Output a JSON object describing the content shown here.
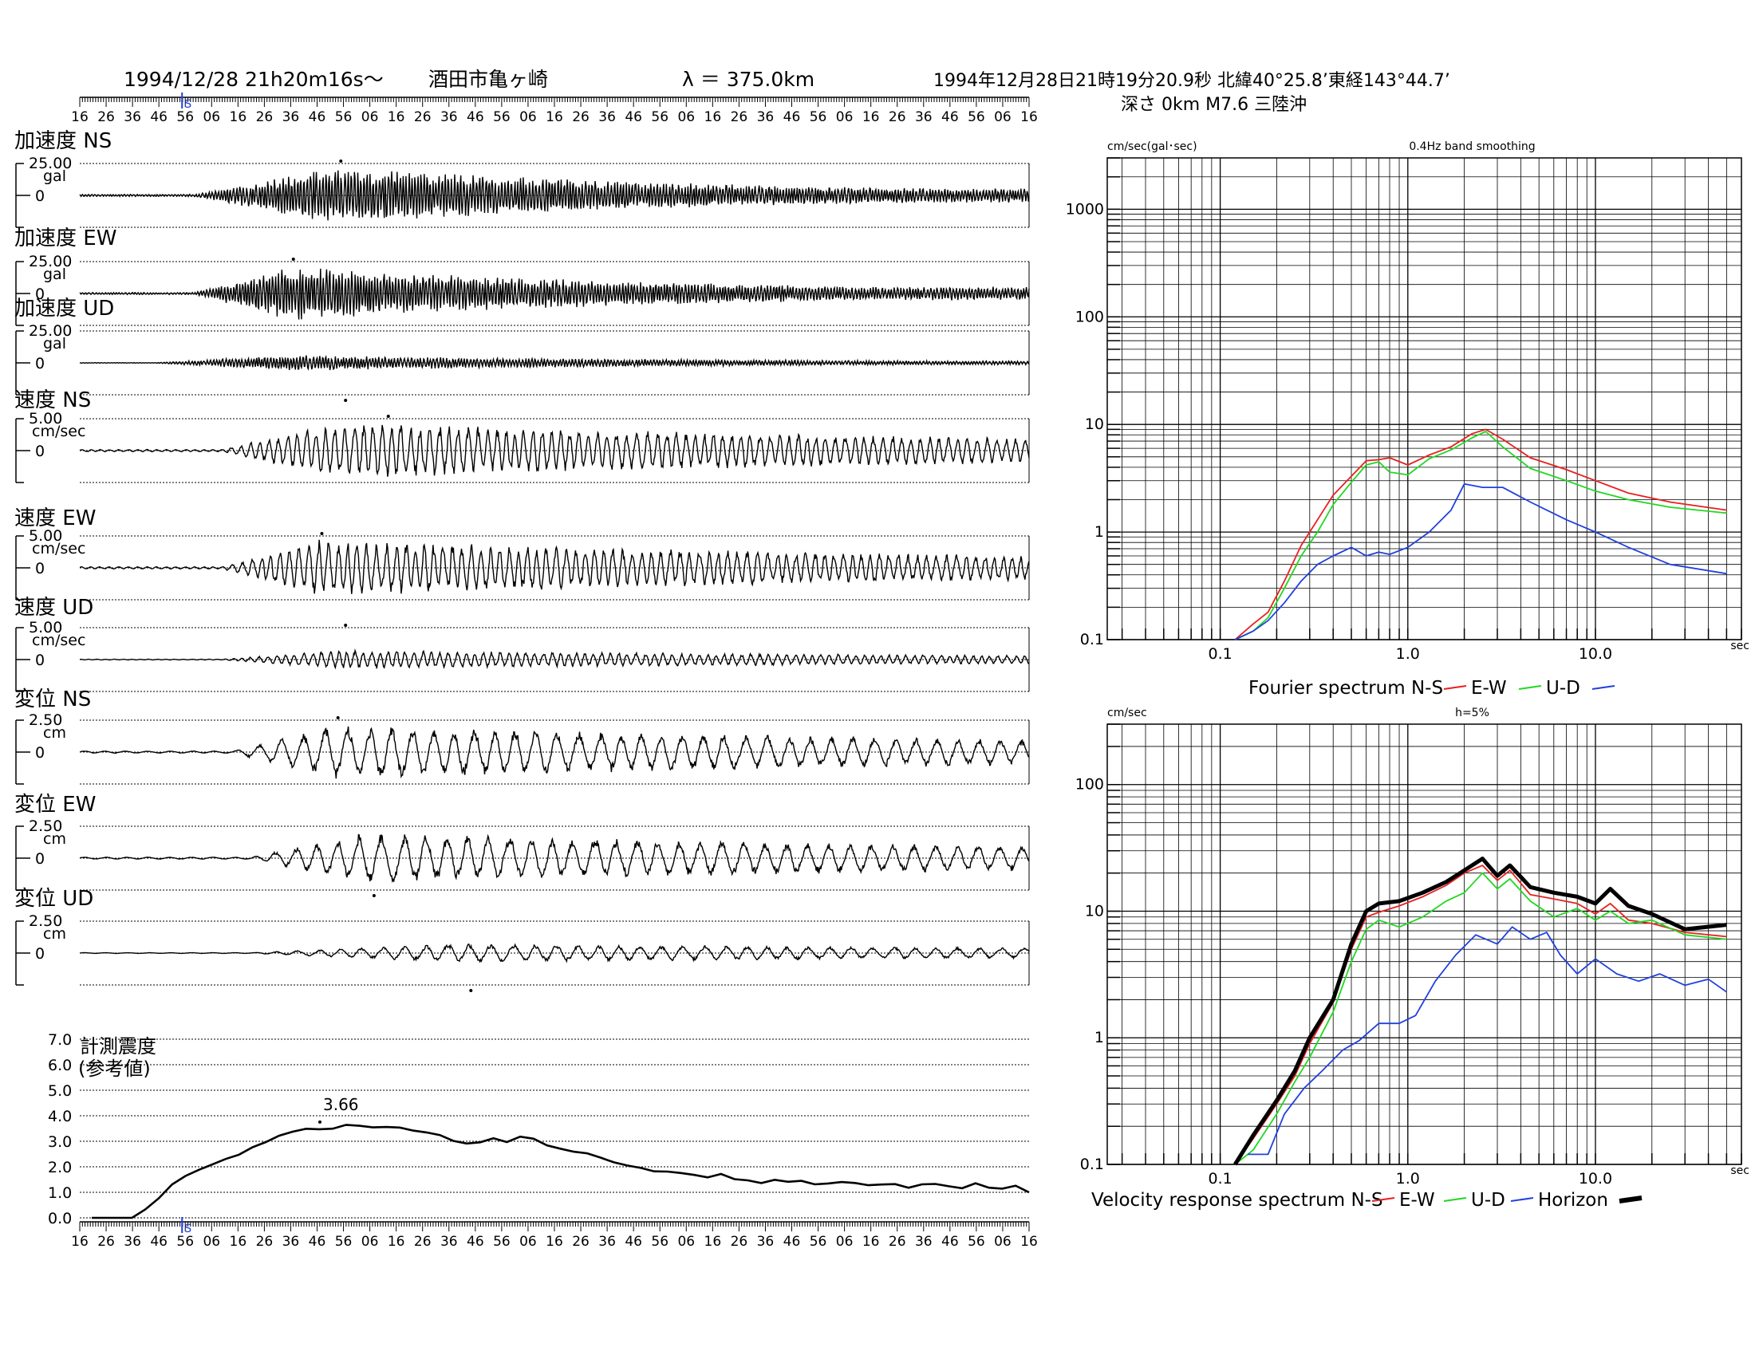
{
  "header": {
    "event_time": "1994/12/28  21h20m16s〜",
    "station": "酒田市亀ヶ崎",
    "epicentral_distance": "λ ＝ 375.0km",
    "quake_line1": "1994年12月28日21時19分20.9秒 北緯40°25.8’東経143°44.7’",
    "quake_line2": "深さ  0km M7.6 三陸沖",
    "time_ticks": [
      "16",
      "26",
      "36",
      "46",
      "56",
      "06",
      "16",
      "26",
      "36",
      "46",
      "56",
      "06",
      "16",
      "26",
      "36",
      "46",
      "56",
      "06",
      "16",
      "26",
      "36",
      "46",
      "56",
      "06",
      "16",
      "26",
      "36",
      "46",
      "56",
      "06",
      "16",
      "26",
      "36",
      "46",
      "56",
      "06",
      "16"
    ],
    "s_marker": "S"
  },
  "waveforms": [
    {
      "title": "加速度 NS",
      "scale": "25.00",
      "unit": "gal",
      "zero": "0",
      "amp": 0.9,
      "onset": 0.12,
      "peak": 0.27,
      "freq": 1.4,
      "decay": 0.45,
      "marker": "top",
      "marker_pos": 0.275
    },
    {
      "title": "加速度 EW",
      "scale": "25.00",
      "unit": "gal",
      "zero": "0",
      "amp": 0.85,
      "onset": 0.12,
      "peak": 0.22,
      "freq": 1.4,
      "decay": 0.45,
      "marker": "top",
      "marker_pos": 0.225
    },
    {
      "title": "加速度 UD",
      "scale": "25.00",
      "unit": "gal",
      "zero": "0",
      "amp": 0.25,
      "onset": 0.08,
      "peak": 0.22,
      "freq": 1.4,
      "decay": 0.5,
      "marker": "bottom",
      "marker_pos": 0.28
    },
    {
      "title": "速度 NS",
      "scale": "5.00",
      "unit": "cm/sec",
      "zero": "0",
      "amp": 0.9,
      "onset": 0.15,
      "peak": 0.27,
      "freq": 0.45,
      "decay": 0.9,
      "marker": "top",
      "marker_pos": 0.325
    },
    {
      "title": "速度 EW",
      "scale": "5.00",
      "unit": "cm/sec",
      "zero": "0",
      "amp": 0.9,
      "onset": 0.15,
      "peak": 0.25,
      "freq": 0.45,
      "decay": 0.9,
      "marker": "top",
      "marker_pos": 0.255
    },
    {
      "title": "速度 UD",
      "scale": "5.00",
      "unit": "cm/sec",
      "zero": "0",
      "amp": 0.3,
      "onset": 0.15,
      "peak": 0.28,
      "freq": 0.5,
      "decay": 0.9,
      "marker": "top",
      "marker_pos": 0.28
    },
    {
      "title": "変位 NS",
      "scale": "2.50",
      "unit": "cm",
      "zero": "0",
      "amp": 0.85,
      "onset": 0.16,
      "peak": 0.27,
      "freq": 0.2,
      "decay": 1.0,
      "marker": "top",
      "marker_pos": 0.272
    },
    {
      "title": "変位 EW",
      "scale": "2.50",
      "unit": "cm",
      "zero": "0",
      "amp": 0.8,
      "onset": 0.18,
      "peak": 0.3,
      "freq": 0.2,
      "decay": 1.0,
      "marker": "bottom",
      "marker_pos": 0.31
    },
    {
      "title": "変位 UD",
      "scale": "2.50",
      "unit": "cm",
      "zero": "0",
      "amp": 0.3,
      "onset": 0.18,
      "peak": 0.4,
      "freq": 0.2,
      "decay": 1.0,
      "marker": "bottom",
      "marker_pos": 0.412
    }
  ],
  "intensity": {
    "label_line1": "計測震度",
    "label_line2": "(参考値)",
    "peak_label": "3.66",
    "yticks": [
      "0.0",
      "1.0",
      "2.0",
      "3.0",
      "4.0",
      "5.0",
      "6.0",
      "7.0"
    ],
    "s_marker": "S"
  },
  "chart_data": [
    {
      "type": "line",
      "title": "Fourier spectrum",
      "subtitle": "0.4Hz band smoothing",
      "ylabel": "cm/sec(gal･sec)",
      "xlabel": "sec",
      "xscale": "log",
      "yscale": "log",
      "xlim": [
        0.025,
        60
      ],
      "ylim": [
        0.1,
        3000
      ],
      "xticks": [
        "0.1",
        "1.0",
        "10.0"
      ],
      "yticks": [
        "0.1",
        "1",
        "10",
        "100",
        "1000"
      ],
      "legend": [
        "N-S",
        "E-W",
        "U-D"
      ],
      "series": [
        {
          "name": "N-S",
          "color": "#e82020",
          "x": [
            0.12,
            0.15,
            0.18,
            0.22,
            0.27,
            0.33,
            0.4,
            0.5,
            0.6,
            0.7,
            0.8,
            1.0,
            1.3,
            1.7,
            2.2,
            2.6,
            3.2,
            4.5,
            7,
            10,
            15,
            25,
            50
          ],
          "y": [
            0.1,
            0.14,
            0.18,
            0.35,
            0.75,
            1.3,
            2.2,
            3.3,
            4.6,
            4.7,
            4.9,
            4.2,
            5.2,
            6.2,
            8.2,
            9.0,
            7.3,
            4.9,
            3.8,
            3.0,
            2.3,
            1.9,
            1.6
          ]
        },
        {
          "name": "E-W",
          "color": "#20d820",
          "x": [
            0.12,
            0.15,
            0.18,
            0.22,
            0.27,
            0.33,
            0.4,
            0.5,
            0.6,
            0.7,
            0.8,
            1.0,
            1.3,
            1.7,
            2.2,
            2.6,
            3.2,
            4.5,
            7,
            10,
            15,
            25,
            50
          ],
          "y": [
            0.1,
            0.12,
            0.16,
            0.3,
            0.6,
            1.0,
            1.8,
            2.9,
            4.2,
            4.5,
            3.6,
            3.4,
            4.8,
            5.8,
            7.5,
            8.6,
            6.2,
            3.9,
            3.0,
            2.4,
            2.0,
            1.7,
            1.5
          ]
        },
        {
          "name": "U-D",
          "color": "#2040e0",
          "x": [
            0.12,
            0.15,
            0.18,
            0.22,
            0.27,
            0.33,
            0.4,
            0.5,
            0.6,
            0.7,
            0.8,
            1.0,
            1.3,
            1.7,
            2.0,
            2.5,
            3.2,
            4.5,
            7,
            10,
            15,
            25,
            50
          ],
          "y": [
            0.1,
            0.12,
            0.15,
            0.22,
            0.35,
            0.5,
            0.6,
            0.72,
            0.6,
            0.65,
            0.62,
            0.72,
            1.0,
            1.6,
            2.8,
            2.6,
            2.6,
            1.9,
            1.3,
            1.0,
            0.72,
            0.5,
            0.41
          ]
        }
      ]
    },
    {
      "type": "line",
      "title": "Velocity response spectrum",
      "subtitle": "h=5%",
      "ylabel": "cm/sec",
      "xlabel": "sec",
      "xscale": "log",
      "yscale": "log",
      "xlim": [
        0.025,
        60
      ],
      "ylim": [
        0.1,
        300
      ],
      "xticks": [
        "0.1",
        "1.0",
        "10.0"
      ],
      "yticks": [
        "0.1",
        "1",
        "10",
        "100"
      ],
      "legend": [
        "N-S",
        "E-W",
        "U-D",
        "Horizon"
      ],
      "series": [
        {
          "name": "N-S",
          "color": "#e82020",
          "x": [
            0.12,
            0.15,
            0.2,
            0.25,
            0.3,
            0.4,
            0.5,
            0.6,
            0.7,
            0.9,
            1.2,
            1.6,
            2.0,
            2.5,
            3.0,
            3.5,
            4.5,
            6,
            8,
            10,
            12,
            15,
            20,
            30,
            50
          ],
          "y": [
            0.1,
            0.16,
            0.3,
            0.5,
            0.9,
            1.9,
            5.0,
            9.0,
            9.8,
            11.0,
            13.0,
            16.0,
            20.0,
            23.0,
            17.5,
            21.0,
            13.5,
            12.5,
            11.5,
            9.5,
            11.5,
            8.5,
            8.0,
            6.8,
            6.3
          ]
        },
        {
          "name": "E-W",
          "color": "#20d820",
          "x": [
            0.12,
            0.15,
            0.2,
            0.25,
            0.3,
            0.4,
            0.5,
            0.6,
            0.7,
            0.9,
            1.2,
            1.6,
            2.0,
            2.5,
            3.0,
            3.5,
            4.5,
            6,
            8,
            10,
            12,
            15,
            20,
            30,
            50
          ],
          "y": [
            0.1,
            0.13,
            0.25,
            0.45,
            0.7,
            1.6,
            4.0,
            7.2,
            8.5,
            7.5,
            9.0,
            12.0,
            14.0,
            20.0,
            15.0,
            18.0,
            12.0,
            9.0,
            10.5,
            8.5,
            10.0,
            8.0,
            8.5,
            6.5,
            6.0
          ]
        },
        {
          "name": "U-D",
          "color": "#2040e0",
          "x": [
            0.14,
            0.18,
            0.22,
            0.28,
            0.35,
            0.45,
            0.55,
            0.7,
            0.9,
            1.1,
            1.4,
            1.8,
            2.3,
            3.0,
            3.6,
            4.5,
            5.5,
            6.5,
            8,
            10,
            13,
            17,
            22,
            30,
            40,
            50
          ],
          "y": [
            0.12,
            0.12,
            0.25,
            0.4,
            0.55,
            0.8,
            0.95,
            1.3,
            1.3,
            1.5,
            2.8,
            4.5,
            6.5,
            5.5,
            7.5,
            6.0,
            6.8,
            4.5,
            3.2,
            4.2,
            3.2,
            2.8,
            3.2,
            2.6,
            2.9,
            2.3
          ]
        },
        {
          "name": "Horizon",
          "color": "#000000",
          "x": [
            0.12,
            0.15,
            0.2,
            0.25,
            0.3,
            0.4,
            0.5,
            0.6,
            0.7,
            0.9,
            1.2,
            1.6,
            2.0,
            2.5,
            3.0,
            3.5,
            4.5,
            6,
            8,
            10,
            12,
            15,
            20,
            30,
            50
          ],
          "y": [
            0.1,
            0.17,
            0.32,
            0.55,
            1.0,
            2.0,
            5.5,
            10.0,
            11.5,
            12.0,
            14.0,
            17.0,
            21.0,
            26.0,
            19.0,
            23.0,
            15.5,
            14.0,
            13.0,
            11.5,
            15.0,
            11.0,
            9.5,
            7.2,
            7.8
          ]
        }
      ]
    },
    {
      "type": "line",
      "title": "計測震度",
      "ylim": [
        0,
        7
      ],
      "points": [
        0.0,
        0.0,
        0.0,
        0.0,
        0.3,
        0.8,
        1.3,
        1.6,
        1.9,
        2.1,
        2.3,
        2.5,
        2.8,
        3.0,
        3.2,
        3.35,
        3.45,
        3.5,
        3.55,
        3.6,
        3.66,
        3.6,
        3.55,
        3.5,
        3.4,
        3.3,
        3.2,
        3.0,
        2.9,
        2.95,
        3.1,
        3.0,
        3.2,
        3.05,
        2.8,
        2.7,
        2.6,
        2.5,
        2.4,
        2.2,
        2.0,
        1.9,
        1.85,
        1.8,
        1.7,
        1.65,
        1.6,
        1.7,
        1.5,
        1.45,
        1.4,
        1.5,
        1.45,
        1.4,
        1.35,
        1.3,
        1.4,
        1.35,
        1.3,
        1.25,
        1.3,
        1.2,
        1.35,
        1.3,
        1.25,
        1.2,
        1.3,
        1.15,
        1.2,
        1.25,
        1.0
      ]
    }
  ],
  "spectra_labels": {
    "fourier_legend": [
      "Fourier spectrum  N-S",
      "E-W",
      "U-D"
    ],
    "velocity_legend": [
      "Velocity response spectrum N-S",
      "E-W",
      "U-D",
      "Horizon"
    ]
  }
}
